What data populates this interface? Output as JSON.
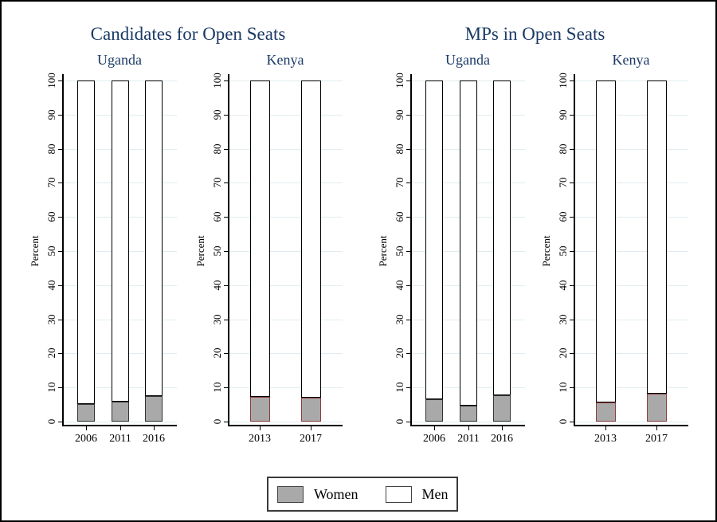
{
  "colors": {
    "title_navy": "#1b3a66",
    "women_fill": "#a9a9a9",
    "men_fill": "#ffffff",
    "men_border": "#000000",
    "women_border_uganda": "#333333",
    "women_border_kenya": "#8f3b3b",
    "gridline": "#e0edf0",
    "axis": "#000000"
  },
  "chart_data": {
    "type": "bar",
    "stacked": true,
    "ylabel": "Percent",
    "ylim": [
      0,
      100
    ],
    "ytick_step": 10,
    "grid": true,
    "legend": [
      "Women",
      "Men"
    ],
    "legend_position": "bottom",
    "groups": [
      {
        "title": "Candidates for Open Seats",
        "panels": [
          {
            "country": "Uganda",
            "categories": [
              "2006",
              "2011",
              "2016"
            ],
            "series": [
              {
                "name": "Women",
                "values": [
                  5.2,
                  5.9,
                  7.5
                ]
              },
              {
                "name": "Men",
                "values": [
                  94.8,
                  94.1,
                  92.5
                ]
              }
            ]
          },
          {
            "country": "Kenya",
            "categories": [
              "2013",
              "2017"
            ],
            "series": [
              {
                "name": "Women",
                "values": [
                  7.3,
                  7.0
                ]
              },
              {
                "name": "Men",
                "values": [
                  92.7,
                  93.0
                ]
              }
            ]
          }
        ]
      },
      {
        "title": "MPs in Open Seats",
        "panels": [
          {
            "country": "Uganda",
            "categories": [
              "2006",
              "2011",
              "2016"
            ],
            "series": [
              {
                "name": "Women",
                "values": [
                  6.5,
                  4.6,
                  7.6
                ]
              },
              {
                "name": "Men",
                "values": [
                  93.5,
                  95.4,
                  92.4
                ]
              }
            ]
          },
          {
            "country": "Kenya",
            "categories": [
              "2013",
              "2017"
            ],
            "series": [
              {
                "name": "Women",
                "values": [
                  5.5,
                  8.1
                ]
              },
              {
                "name": "Men",
                "values": [
                  94.5,
                  91.9
                ]
              }
            ]
          }
        ]
      }
    ]
  }
}
